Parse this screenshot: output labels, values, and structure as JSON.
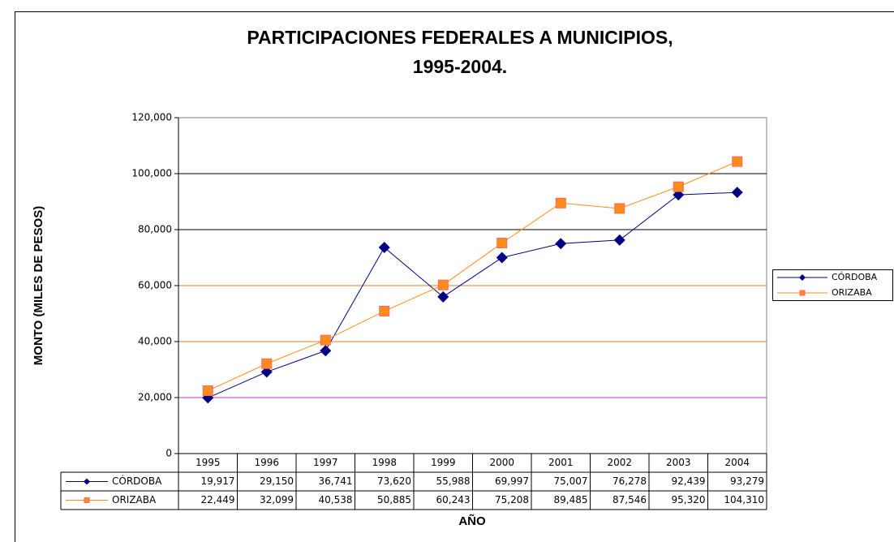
{
  "chart_data": {
    "type": "line",
    "title": [
      "PARTICIPACIONES FEDERALES A MUNICIPIOS,",
      "1995-2004."
    ],
    "y_label": "MONTO (MILES DE PESOS)",
    "x_label": "AÑO",
    "categories": [
      "1995",
      "1996",
      "1997",
      "1998",
      "1999",
      "2000",
      "2001",
      "2002",
      "2003",
      "2004"
    ],
    "series": [
      {
        "name": "CÓRDOBA",
        "color": "#000080",
        "marker": "diamond",
        "values": [
          19917,
          29150,
          36741,
          73620,
          55988,
          69997,
          75007,
          76278,
          92439,
          93279
        ],
        "value_labels": [
          "19,917",
          "29,150",
          "36,741",
          "73,620",
          "55,988",
          "69,997",
          "75,007",
          "76,278",
          "92,439",
          "93,279"
        ]
      },
      {
        "name": "ORIZABA",
        "color": "#ff8c1a",
        "marker": "square",
        "values": [
          22449,
          32099,
          40538,
          50885,
          60243,
          75208,
          89485,
          87546,
          95320,
          104310
        ],
        "value_labels": [
          "22,449",
          "32,099",
          "40,538",
          "50,885",
          "60,243",
          "75,208",
          "89,485",
          "87,546",
          "95,320",
          "104,310"
        ]
      }
    ],
    "ylim": [
      0,
      120000
    ],
    "yticks": [
      0,
      {
        "value": 20000,
        "label": "20,000"
      },
      {
        "value": 40000,
        "label": "40,000"
      },
      {
        "value": 60000,
        "label": "60,000"
      },
      {
        "value": 80000,
        "label": "80,000"
      },
      {
        "value": 100000,
        "label": "100,000"
      },
      {
        "value": 120000,
        "label": "120,000"
      }
    ],
    "grid": true,
    "legend": "right",
    "data_table": true
  }
}
